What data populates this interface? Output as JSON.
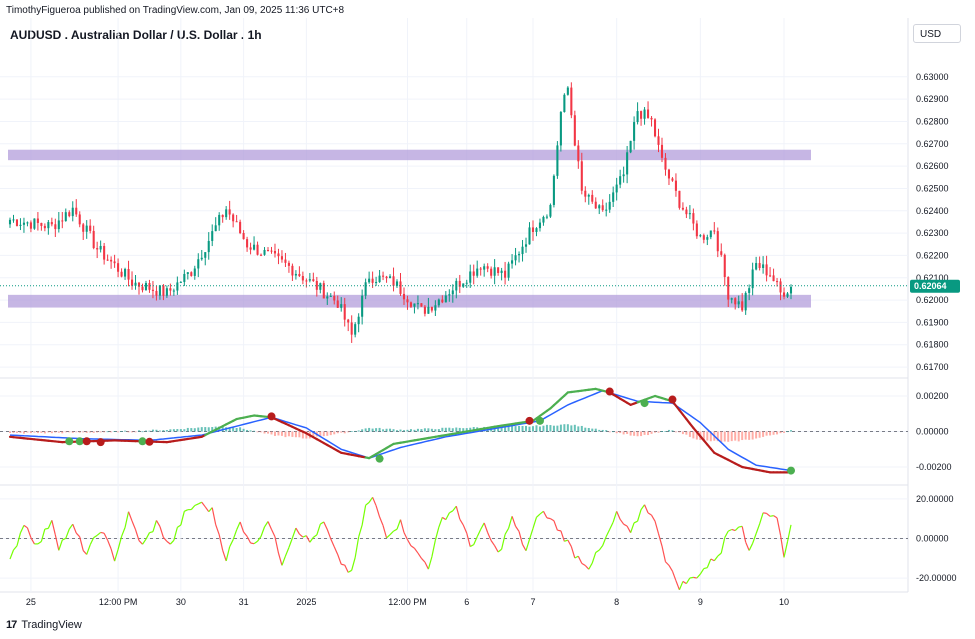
{
  "header": {
    "publisher_line": "TimothyFigueroa published on TradingView.com, Jan 09, 2025 11:36 UTC+8",
    "symbol_title": "AUDUSD . Australian Dollar / U.S. Dollar . 1h",
    "currency_button": "USD"
  },
  "footer": {
    "logo_mark": "17",
    "logo_text": "TradingView"
  },
  "colors": {
    "up": "#089981",
    "down": "#f23645",
    "zone": "#b39ddb",
    "macd_green": "#4caf50",
    "macd_dark_red": "#b71c1c",
    "signal_blue": "#2962ff",
    "dot_green": "#4caf50",
    "dot_red": "#b71c1c",
    "osc_green": "#76ff03",
    "osc_red": "#ff5252",
    "price_badge": "#089981"
  },
  "chart_data": [
    {
      "type": "candlestick",
      "title": "AUDUSD . Australian Dollar / U.S. Dollar . 1h",
      "ylim": [
        0.6166,
        0.6312
      ],
      "y_ticks": [
        0.617,
        0.618,
        0.619,
        0.62,
        0.621,
        0.622,
        0.623,
        0.624,
        0.625,
        0.626,
        0.627,
        0.628,
        0.629,
        0.63
      ],
      "y_tick_labels": [
        "0.61700",
        "0.61800",
        "0.61900",
        "0.62000",
        "0.62100",
        "0.62200",
        "0.62300",
        "0.62400",
        "0.62500",
        "0.62600",
        "0.62700",
        "0.62800",
        "0.62900",
        "0.63000"
      ],
      "current_price": 0.62064,
      "current_price_label": "0.62064",
      "zones": [
        {
          "low": 0.6264,
          "high": 0.6266,
          "x_end_bar": 224
        },
        {
          "low": 0.6198,
          "high": 0.6201,
          "x_end_bar": 224
        }
      ],
      "n_bars": 225,
      "anchors": [
        [
          0,
          0.6236
        ],
        [
          12,
          0.6233
        ],
        [
          18,
          0.6241
        ],
        [
          25,
          0.6223
        ],
        [
          35,
          0.6208
        ],
        [
          45,
          0.6203
        ],
        [
          52,
          0.6213
        ],
        [
          62,
          0.6241
        ],
        [
          68,
          0.6225
        ],
        [
          80,
          0.6215
        ],
        [
          88,
          0.6206
        ],
        [
          94,
          0.6199
        ],
        [
          98,
          0.6184
        ],
        [
          103,
          0.6211
        ],
        [
          110,
          0.6208
        ],
        [
          118,
          0.6195
        ],
        [
          122,
          0.6199
        ],
        [
          135,
          0.6216
        ],
        [
          142,
          0.6211
        ],
        [
          150,
          0.6233
        ],
        [
          155,
          0.6242
        ],
        [
          158,
          0.6284
        ],
        [
          160,
          0.6295
        ],
        [
          164,
          0.6248
        ],
        [
          170,
          0.6238
        ],
        [
          176,
          0.6256
        ],
        [
          180,
          0.6285
        ],
        [
          184,
          0.628
        ],
        [
          187,
          0.6262
        ],
        [
          192,
          0.6244
        ],
        [
          198,
          0.6228
        ],
        [
          202,
          0.6232
        ],
        [
          206,
          0.6203
        ],
        [
          210,
          0.6197
        ],
        [
          214,
          0.6216
        ],
        [
          218,
          0.6212
        ],
        [
          221,
          0.6203
        ],
        [
          224,
          0.6206
        ]
      ]
    },
    {
      "type": "line",
      "title": "",
      "ylim": [
        -0.0029,
        0.0029
      ],
      "y_ticks": [
        -0.002,
        0.0,
        0.002
      ],
      "y_tick_labels": [
        "-0.00200",
        "0.00000",
        "0.00200"
      ],
      "series": [
        {
          "key": "macd",
          "anchors": [
            [
              0,
              -0.0003
            ],
            [
              15,
              -0.0006
            ],
            [
              30,
              -0.0005
            ],
            [
              45,
              -0.0006
            ],
            [
              55,
              -0.0003
            ],
            [
              65,
              0.0007
            ],
            [
              70,
              0.0009
            ],
            [
              75,
              0.0008
            ],
            [
              85,
              -0.0001
            ],
            [
              95,
              -0.0012
            ],
            [
              103,
              -0.0015
            ],
            [
              110,
              -0.0007
            ],
            [
              125,
              -0.0002
            ],
            [
              140,
              0.0003
            ],
            [
              150,
              0.0006
            ],
            [
              155,
              0.0013
            ],
            [
              160,
              0.0022
            ],
            [
              168,
              0.0024
            ],
            [
              172,
              0.0022
            ],
            [
              178,
              0.0015
            ],
            [
              185,
              0.002
            ],
            [
              190,
              0.0017
            ],
            [
              196,
              0.0002
            ],
            [
              202,
              -0.0012
            ],
            [
              210,
              -0.002
            ],
            [
              218,
              -0.0023
            ],
            [
              224,
              -0.0023
            ]
          ]
        },
        {
          "key": "signal",
          "anchors": [
            [
              0,
              -0.0002
            ],
            [
              20,
              -0.0004
            ],
            [
              40,
              -0.0005
            ],
            [
              55,
              -0.0002
            ],
            [
              65,
              0.0003
            ],
            [
              75,
              0.0008
            ],
            [
              85,
              0.0002
            ],
            [
              95,
              -0.001
            ],
            [
              103,
              -0.0015
            ],
            [
              112,
              -0.0009
            ],
            [
              125,
              -0.0003
            ],
            [
              140,
              0.0002
            ],
            [
              152,
              0.0006
            ],
            [
              160,
              0.0015
            ],
            [
              170,
              0.0023
            ],
            [
              180,
              0.0017
            ],
            [
              190,
              0.0016
            ],
            [
              198,
              0.0005
            ],
            [
              206,
              -0.001
            ],
            [
              214,
              -0.0019
            ],
            [
              224,
              -0.0022
            ]
          ]
        }
      ],
      "histogram_anchors": [
        [
          0,
          -0.0001
        ],
        [
          25,
          -5e-05
        ],
        [
          45,
          0.0001
        ],
        [
          60,
          0.0003
        ],
        [
          66,
          0.0002
        ],
        [
          75,
          -0.0002
        ],
        [
          85,
          -0.0004
        ],
        [
          95,
          -0.0001
        ],
        [
          103,
          0.0002
        ],
        [
          112,
          0.0001
        ],
        [
          128,
          0.0002
        ],
        [
          150,
          0.0003
        ],
        [
          160,
          0.0004
        ],
        [
          170,
          0.0001
        ],
        [
          180,
          -0.0003
        ],
        [
          190,
          0.0001
        ],
        [
          198,
          -0.0005
        ],
        [
          206,
          -0.0006
        ],
        [
          214,
          -0.0004
        ],
        [
          224,
          5e-05
        ]
      ],
      "crossovers": [
        {
          "bar": 17,
          "value": -0.00055,
          "kind": "green"
        },
        {
          "bar": 20,
          "value": -0.00055,
          "kind": "green"
        },
        {
          "bar": 22,
          "value": -0.00055,
          "kind": "red"
        },
        {
          "bar": 26,
          "value": -0.0006,
          "kind": "red"
        },
        {
          "bar": 38,
          "value": -0.00055,
          "kind": "green"
        },
        {
          "bar": 40,
          "value": -0.00058,
          "kind": "red"
        },
        {
          "bar": 75,
          "value": 0.00085,
          "kind": "red"
        },
        {
          "bar": 106,
          "value": -0.00153,
          "kind": "green"
        },
        {
          "bar": 149,
          "value": 0.0006,
          "kind": "red"
        },
        {
          "bar": 152,
          "value": 0.0006,
          "kind": "green"
        },
        {
          "bar": 172,
          "value": 0.00225,
          "kind": "red"
        },
        {
          "bar": 182,
          "value": 0.0016,
          "kind": "green"
        },
        {
          "bar": 190,
          "value": 0.0018,
          "kind": "red"
        },
        {
          "bar": 224,
          "value": -0.0022,
          "kind": "green"
        }
      ]
    },
    {
      "type": "line",
      "title": "",
      "ylim": [
        -26,
        26
      ],
      "y_ticks": [
        -20,
        0,
        20
      ],
      "y_tick_labels": [
        "-20.00000",
        "0.00000",
        "20.00000"
      ],
      "series": [
        {
          "key": "oscillator",
          "anchors": [
            [
              0,
              -12
            ],
            [
              4,
              8
            ],
            [
              8,
              -4
            ],
            [
              12,
              10
            ],
            [
              14,
              -4
            ],
            [
              18,
              6
            ],
            [
              22,
              -8
            ],
            [
              26,
              5
            ],
            [
              30,
              -10
            ],
            [
              34,
              12
            ],
            [
              38,
              -4
            ],
            [
              42,
              8
            ],
            [
              46,
              -4
            ],
            [
              50,
              12
            ],
            [
              54,
              18
            ],
            [
              58,
              14
            ],
            [
              62,
              -10
            ],
            [
              66,
              8
            ],
            [
              70,
              -4
            ],
            [
              74,
              10
            ],
            [
              78,
              -12
            ],
            [
              82,
              6
            ],
            [
              86,
              -2
            ],
            [
              90,
              8
            ],
            [
              94,
              -10
            ],
            [
              98,
              -18
            ],
            [
              102,
              16
            ],
            [
              104,
              20
            ],
            [
              108,
              2
            ],
            [
              112,
              8
            ],
            [
              116,
              -6
            ],
            [
              120,
              -14
            ],
            [
              124,
              10
            ],
            [
              128,
              16
            ],
            [
              132,
              -4
            ],
            [
              136,
              6
            ],
            [
              140,
              -8
            ],
            [
              144,
              10
            ],
            [
              148,
              -6
            ],
            [
              152,
              14
            ],
            [
              156,
              8
            ],
            [
              160,
              -2
            ],
            [
              162,
              -8
            ],
            [
              166,
              -14
            ],
            [
              170,
              -4
            ],
            [
              174,
              12
            ],
            [
              178,
              2
            ],
            [
              182,
              18
            ],
            [
              186,
              4
            ],
            [
              188,
              -10
            ],
            [
              190,
              -18
            ],
            [
              192,
              -24
            ],
            [
              196,
              -20
            ],
            [
              200,
              -14
            ],
            [
              204,
              -6
            ],
            [
              206,
              4
            ],
            [
              210,
              8
            ],
            [
              212,
              -8
            ],
            [
              216,
              14
            ],
            [
              220,
              10
            ],
            [
              222,
              -8
            ],
            [
              224,
              6
            ]
          ]
        }
      ]
    }
  ],
  "x_axis": {
    "tick_labels": [
      {
        "bar": 6,
        "label": "25"
      },
      {
        "bar": 31,
        "label": "12:00 PM"
      },
      {
        "bar": 49,
        "label": "30"
      },
      {
        "bar": 67,
        "label": "31"
      },
      {
        "bar": 85,
        "label": "2025"
      },
      {
        "bar": 114,
        "label": "12:00 PM"
      },
      {
        "bar": 131,
        "label": "6"
      },
      {
        "bar": 150,
        "label": "7"
      },
      {
        "bar": 174,
        "label": "8"
      },
      {
        "bar": 198,
        "label": "9"
      },
      {
        "bar": 222,
        "label": "10"
      }
    ]
  }
}
